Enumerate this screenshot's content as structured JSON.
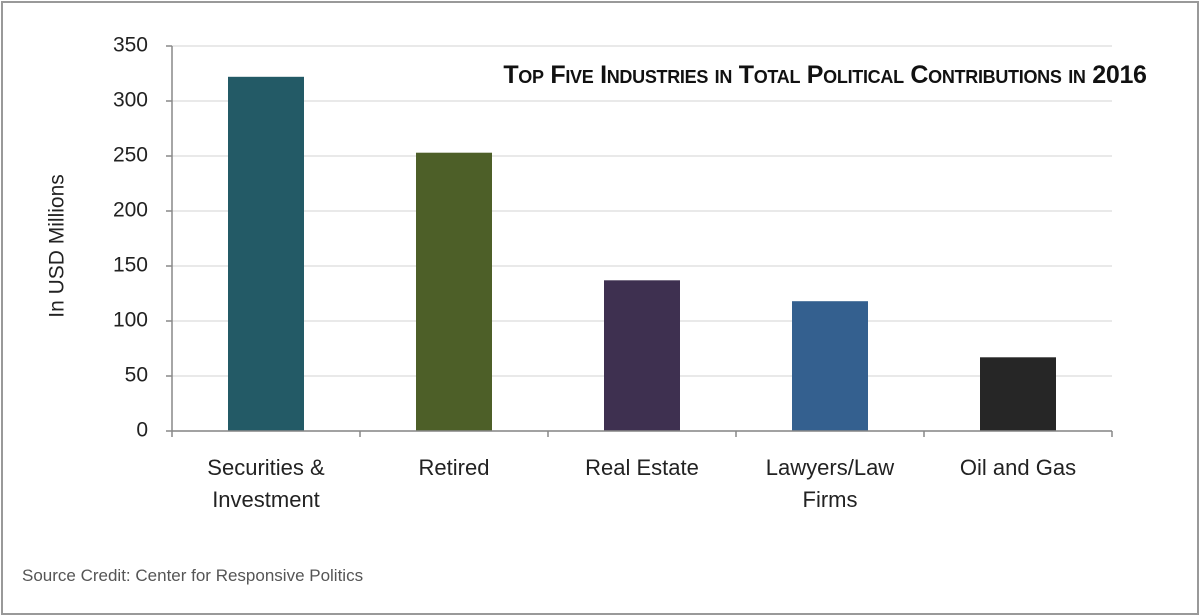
{
  "chart_data": {
    "type": "bar",
    "title": "Top Five Industries in Total Political Contributions in 2016",
    "y_label": "In USD Millions",
    "source": "Source Credit: Center for Responsive Politics",
    "categories": [
      "Securities & Investment",
      "Retired",
      "Real Estate",
      "Lawyers/Law Firms",
      "Oil and Gas"
    ],
    "values": [
      322,
      253,
      137,
      118,
      67
    ],
    "colors": [
      "#235a66",
      "#4d5f28",
      "#3e3050",
      "#34608f",
      "#262626"
    ],
    "ylim": [
      0,
      350
    ],
    "yticks": [
      0,
      50,
      100,
      150,
      200,
      250,
      300,
      350
    ],
    "grid": true
  }
}
